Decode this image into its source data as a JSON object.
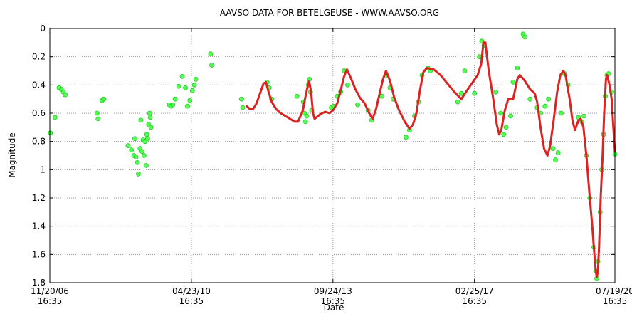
{
  "chart_data": {
    "type": "scatter",
    "title": "AAVSO DATA FOR BETELGEUSE - WWW.AAVSO.ORG",
    "xlabel": "Date",
    "ylabel": "Magnitude",
    "x_ticks": [
      {
        "line1": "11/20/06",
        "line2": "16:35",
        "x": "2006-11-20"
      },
      {
        "line1": "04/23/10",
        "line2": "16:35",
        "x": "2010-04-23"
      },
      {
        "line1": "09/24/13",
        "line2": "16:35",
        "x": "2013-09-24"
      },
      {
        "line1": "02/25/17",
        "line2": "16:35",
        "x": "2017-02-25"
      },
      {
        "line1": "07/19/20",
        "line2": "16:35",
        "x": "2020-07-19"
      }
    ],
    "y_ticks": [
      "0",
      "0.2",
      "0.4",
      "0.6",
      "0.8",
      "1",
      "1.2",
      "1.4",
      "1.6",
      "1.8"
    ],
    "xlim": [
      "2006-11-20",
      "2020-07-19"
    ],
    "ylim": [
      0,
      1.8
    ],
    "y_inverted": true,
    "grid": true,
    "colors": {
      "observations": "#44ff44",
      "trend": "#dd2222",
      "grid": "#999999"
    },
    "series": [
      {
        "style": "points",
        "points": [
          [
            "2006-11-25",
            0.74
          ],
          [
            "2007-01-05",
            0.63
          ],
          [
            "2007-02-10",
            0.42
          ],
          [
            "2007-03-01",
            0.43
          ],
          [
            "2007-03-20",
            0.45
          ],
          [
            "2007-04-05",
            0.47
          ],
          [
            "2008-01-10",
            0.6
          ],
          [
            "2008-01-20",
            0.64
          ],
          [
            "2008-02-25",
            0.51
          ],
          [
            "2008-03-10",
            0.5
          ],
          [
            "2008-10-10",
            0.83
          ],
          [
            "2008-11-10",
            0.86
          ],
          [
            "2008-12-01",
            0.9
          ],
          [
            "2008-12-10",
            0.78
          ],
          [
            "2008-12-20",
            0.91
          ],
          [
            "2009-01-01",
            0.95
          ],
          [
            "2009-01-10",
            1.03
          ],
          [
            "2009-01-25",
            0.85
          ],
          [
            "2009-02-01",
            0.65
          ],
          [
            "2009-02-10",
            0.87
          ],
          [
            "2009-02-20",
            0.79
          ],
          [
            "2009-03-01",
            0.9
          ],
          [
            "2009-03-10",
            0.8
          ],
          [
            "2009-03-20",
            0.97
          ],
          [
            "2009-03-25",
            0.75
          ],
          [
            "2009-04-01",
            0.78
          ],
          [
            "2009-04-10",
            0.68
          ],
          [
            "2009-04-20",
            0.6
          ],
          [
            "2009-04-25",
            0.63
          ],
          [
            "2009-05-01",
            0.7
          ],
          [
            "2009-10-10",
            0.54
          ],
          [
            "2009-10-25",
            0.55
          ],
          [
            "2009-11-10",
            0.54
          ],
          [
            "2009-12-01",
            0.5
          ],
          [
            "2010-01-01",
            0.41
          ],
          [
            "2010-02-01",
            0.34
          ],
          [
            "2010-03-01",
            0.42
          ],
          [
            "2010-03-20",
            0.55
          ],
          [
            "2010-04-10",
            0.51
          ],
          [
            "2010-05-01",
            0.44
          ],
          [
            "2010-05-20",
            0.4
          ],
          [
            "2010-06-01",
            0.36
          ],
          [
            "2010-10-10",
            0.18
          ],
          [
            "2010-10-20",
            0.26
          ],
          [
            "2011-07-10",
            0.5
          ],
          [
            "2011-07-20",
            0.56
          ],
          [
            "2012-02-20",
            0.38
          ],
          [
            "2012-03-10",
            0.42
          ],
          [
            "2012-04-01",
            0.5
          ],
          [
            "2012-11-10",
            0.48
          ],
          [
            "2013-01-05",
            0.52
          ],
          [
            "2013-01-15",
            0.6
          ],
          [
            "2013-01-25",
            0.66
          ],
          [
            "2013-02-05",
            0.62
          ],
          [
            "2013-02-20",
            0.4
          ],
          [
            "2013-03-01",
            0.36
          ],
          [
            "2013-03-10",
            0.45
          ],
          [
            "2013-03-20",
            0.58
          ],
          [
            "2013-09-10",
            0.56
          ],
          [
            "2013-10-01",
            0.55
          ],
          [
            "2013-11-01",
            0.48
          ],
          [
            "2013-12-01",
            0.45
          ],
          [
            "2014-01-01",
            0.3
          ],
          [
            "2014-02-01",
            0.4
          ],
          [
            "2014-05-01",
            0.54
          ],
          [
            "2014-08-01",
            0.58
          ],
          [
            "2014-09-01",
            0.65
          ],
          [
            "2014-12-01",
            0.48
          ],
          [
            "2015-01-10",
            0.33
          ],
          [
            "2015-02-10",
            0.42
          ],
          [
            "2015-03-10",
            0.5
          ],
          [
            "2015-07-01",
            0.77
          ],
          [
            "2015-08-01",
            0.72
          ],
          [
            "2015-09-15",
            0.62
          ],
          [
            "2015-10-20",
            0.52
          ],
          [
            "2015-11-20",
            0.33
          ],
          [
            "2016-01-10",
            0.28
          ],
          [
            "2016-02-01",
            0.3
          ],
          [
            "2016-10-01",
            0.52
          ],
          [
            "2016-11-01",
            0.46
          ],
          [
            "2016-12-01",
            0.3
          ],
          [
            "2017-02-25",
            0.46
          ],
          [
            "2017-04-10",
            0.2
          ],
          [
            "2017-05-01",
            0.09
          ],
          [
            "2017-05-20",
            0.12
          ],
          [
            "2017-09-01",
            0.45
          ],
          [
            "2017-10-15",
            0.6
          ],
          [
            "2017-11-10",
            0.75
          ],
          [
            "2017-12-01",
            0.7
          ],
          [
            "2018-01-10",
            0.62
          ],
          [
            "2018-02-01",
            0.38
          ],
          [
            "2018-03-10",
            0.28
          ],
          [
            "2018-05-01",
            0.04
          ],
          [
            "2018-05-15",
            0.06
          ],
          [
            "2018-07-01",
            0.5
          ],
          [
            "2018-09-01",
            0.56
          ],
          [
            "2018-10-01",
            0.6
          ],
          [
            "2018-11-10",
            0.55
          ],
          [
            "2018-12-10",
            0.5
          ],
          [
            "2019-01-20",
            0.85
          ],
          [
            "2019-02-10",
            0.93
          ],
          [
            "2019-03-05",
            0.88
          ],
          [
            "2019-04-01",
            0.6
          ],
          [
            "2019-05-01",
            0.32
          ],
          [
            "2019-06-01",
            0.4
          ],
          [
            "2019-09-01",
            0.63
          ],
          [
            "2019-10-01",
            0.66
          ],
          [
            "2019-10-20",
            0.62
          ],
          [
            "2019-11-10",
            0.9
          ],
          [
            "2019-12-10",
            1.2
          ],
          [
            "2020-01-15",
            1.55
          ],
          [
            "2020-02-01",
            1.72
          ],
          [
            "2020-02-10",
            1.77
          ],
          [
            "2020-02-20",
            1.65
          ],
          [
            "2020-03-10",
            1.3
          ],
          [
            "2020-03-25",
            1.0
          ],
          [
            "2020-04-10",
            0.75
          ],
          [
            "2020-04-25",
            0.48
          ],
          [
            "2020-05-10",
            0.33
          ],
          [
            "2020-05-25",
            0.32
          ],
          [
            "2020-06-20",
            0.45
          ],
          [
            "2020-07-19",
            0.89
          ]
        ]
      },
      {
        "style": "line",
        "points": [
          [
            "2011-08-25",
            0.55
          ],
          [
            "2011-09-20",
            0.57
          ],
          [
            "2011-10-20",
            0.57
          ],
          [
            "2011-11-20",
            0.53
          ],
          [
            "2011-12-20",
            0.46
          ],
          [
            "2012-01-20",
            0.39
          ],
          [
            "2012-02-10",
            0.38
          ],
          [
            "2012-03-01",
            0.44
          ],
          [
            "2012-04-01",
            0.52
          ],
          [
            "2012-05-10",
            0.57
          ],
          [
            "2012-06-20",
            0.6
          ],
          [
            "2012-08-01",
            0.62
          ],
          [
            "2012-09-10",
            0.64
          ],
          [
            "2012-10-20",
            0.66
          ],
          [
            "2012-11-20",
            0.66
          ],
          [
            "2013-01-01",
            0.58
          ],
          [
            "2013-01-20",
            0.5
          ],
          [
            "2013-02-10",
            0.42
          ],
          [
            "2013-02-25",
            0.37
          ],
          [
            "2013-03-15",
            0.45
          ],
          [
            "2013-04-01",
            0.6
          ],
          [
            "2013-04-15",
            0.64
          ],
          [
            "2013-05-15",
            0.62
          ],
          [
            "2013-06-20",
            0.6
          ],
          [
            "2013-07-20",
            0.59
          ],
          [
            "2013-08-25",
            0.6
          ],
          [
            "2013-09-24",
            0.58
          ],
          [
            "2013-11-01",
            0.53
          ],
          [
            "2013-12-01",
            0.44
          ],
          [
            "2014-01-01",
            0.34
          ],
          [
            "2014-01-25",
            0.29
          ],
          [
            "2014-03-01",
            0.35
          ],
          [
            "2014-04-10",
            0.43
          ],
          [
            "2014-05-20",
            0.49
          ],
          [
            "2014-07-01",
            0.53
          ],
          [
            "2014-08-10",
            0.6
          ],
          [
            "2014-09-10",
            0.64
          ],
          [
            "2014-10-10",
            0.57
          ],
          [
            "2014-11-10",
            0.46
          ],
          [
            "2014-12-10",
            0.36
          ],
          [
            "2015-01-05",
            0.3
          ],
          [
            "2015-02-10",
            0.37
          ],
          [
            "2015-03-20",
            0.49
          ],
          [
            "2015-05-01",
            0.58
          ],
          [
            "2015-06-20",
            0.66
          ],
          [
            "2015-08-01",
            0.71
          ],
          [
            "2015-09-01",
            0.68
          ],
          [
            "2015-10-01",
            0.6
          ],
          [
            "2015-11-01",
            0.44
          ],
          [
            "2015-12-01",
            0.31
          ],
          [
            "2016-01-01",
            0.28
          ],
          [
            "2016-03-01",
            0.29
          ],
          [
            "2016-05-01",
            0.33
          ],
          [
            "2016-07-01",
            0.39
          ],
          [
            "2016-09-01",
            0.45
          ],
          [
            "2016-11-01",
            0.5
          ],
          [
            "2016-12-20",
            0.44
          ],
          [
            "2017-02-10",
            0.38
          ],
          [
            "2017-03-25",
            0.33
          ],
          [
            "2017-04-25",
            0.25
          ],
          [
            "2017-05-15",
            0.1
          ],
          [
            "2017-06-01",
            0.1
          ],
          [
            "2017-07-01",
            0.3
          ],
          [
            "2017-08-10",
            0.5
          ],
          [
            "2017-09-10",
            0.68
          ],
          [
            "2017-10-01",
            0.75
          ],
          [
            "2017-10-20",
            0.72
          ],
          [
            "2017-11-20",
            0.58
          ],
          [
            "2017-12-20",
            0.5
          ],
          [
            "2018-02-01",
            0.5
          ],
          [
            "2018-03-10",
            0.36
          ],
          [
            "2018-04-01",
            0.33
          ],
          [
            "2018-05-15",
            0.37
          ],
          [
            "2018-07-01",
            0.43
          ],
          [
            "2018-08-10",
            0.46
          ],
          [
            "2018-09-01",
            0.52
          ],
          [
            "2018-10-01",
            0.7
          ],
          [
            "2018-11-01",
            0.85
          ],
          [
            "2018-12-01",
            0.9
          ],
          [
            "2018-12-25",
            0.83
          ],
          [
            "2019-01-25",
            0.65
          ],
          [
            "2019-02-25",
            0.45
          ],
          [
            "2019-03-25",
            0.33
          ],
          [
            "2019-04-20",
            0.3
          ],
          [
            "2019-05-10",
            0.33
          ],
          [
            "2019-06-15",
            0.5
          ],
          [
            "2019-07-10",
            0.65
          ],
          [
            "2019-08-01",
            0.72
          ],
          [
            "2019-09-01",
            0.65
          ],
          [
            "2019-09-20",
            0.64
          ],
          [
            "2019-10-15",
            0.7
          ],
          [
            "2019-11-10",
            0.9
          ],
          [
            "2019-11-25",
            1.05
          ],
          [
            "2019-12-10",
            1.2
          ],
          [
            "2020-01-01",
            1.4
          ],
          [
            "2020-01-15",
            1.55
          ],
          [
            "2020-02-01",
            1.72
          ],
          [
            "2020-02-10",
            1.76
          ],
          [
            "2020-02-20",
            1.72
          ],
          [
            "2020-03-01",
            1.55
          ],
          [
            "2020-03-15",
            1.2
          ],
          [
            "2020-04-01",
            0.9
          ],
          [
            "2020-04-15",
            0.6
          ],
          [
            "2020-05-01",
            0.36
          ],
          [
            "2020-05-10",
            0.33
          ],
          [
            "2020-06-01",
            0.4
          ],
          [
            "2020-06-20",
            0.5
          ],
          [
            "2020-07-05",
            0.7
          ],
          [
            "2020-07-19",
            0.87
          ]
        ]
      }
    ]
  }
}
